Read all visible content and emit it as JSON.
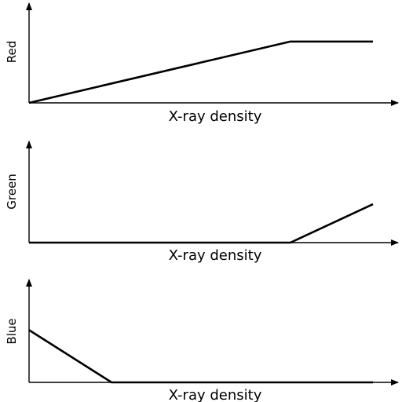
{
  "chart_data": [
    {
      "type": "line",
      "title": "",
      "xlabel": "X-ray density",
      "ylabel": "Red",
      "xlim": [
        0,
        1
      ],
      "ylim": [
        0,
        1
      ],
      "grid": false,
      "series": [
        {
          "x": [
            0,
            0.76,
            1.0
          ],
          "y": [
            0,
            0.84,
            0.84
          ]
        }
      ]
    },
    {
      "type": "line",
      "title": "",
      "xlabel": "X-ray density",
      "ylabel": "Green",
      "xlim": [
        0,
        1
      ],
      "ylim": [
        0,
        1
      ],
      "grid": false,
      "series": [
        {
          "x": [
            0,
            0.76,
            1.0
          ],
          "y": [
            0,
            0,
            0.55
          ]
        }
      ]
    },
    {
      "type": "line",
      "title": "",
      "xlabel": "X-ray density",
      "ylabel": "Blue",
      "xlim": [
        0,
        1
      ],
      "ylim": [
        0,
        1
      ],
      "grid": false,
      "series": [
        {
          "x": [
            0,
            0.24,
            1.0
          ],
          "y": [
            0.55,
            0,
            0
          ]
        }
      ]
    }
  ]
}
